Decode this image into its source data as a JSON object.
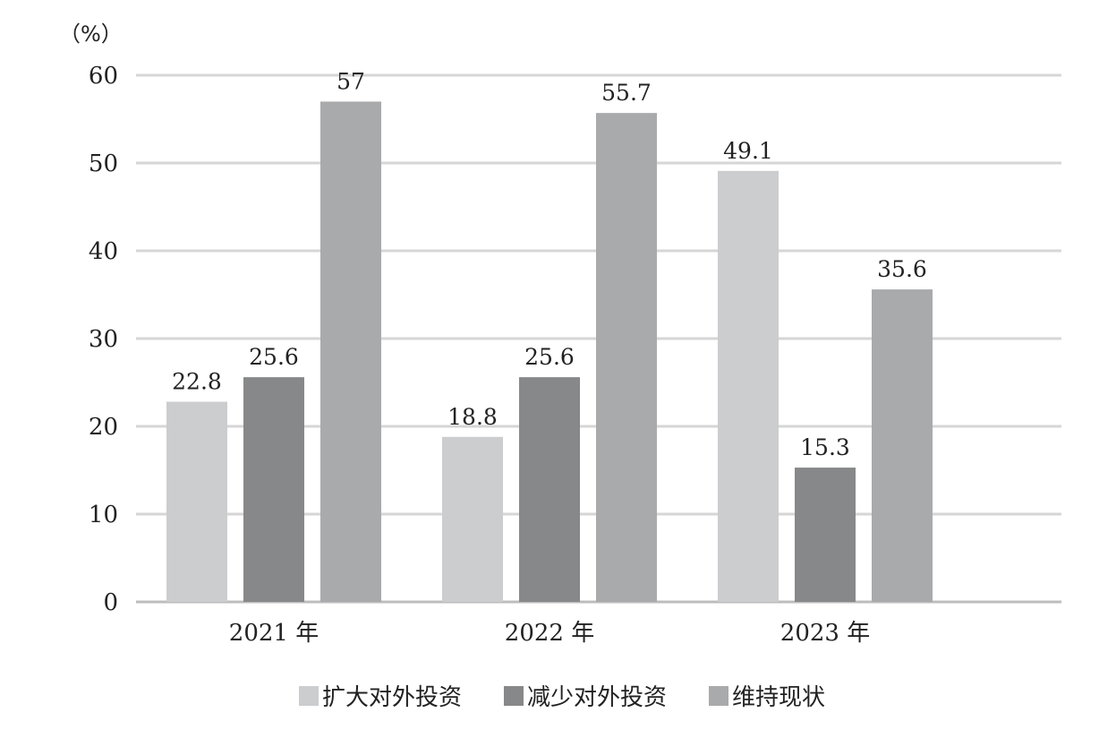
{
  "chart_data": {
    "type": "bar",
    "unit_label": "（%）",
    "categories": [
      "2021 年",
      "2022 年",
      "2023 年"
    ],
    "series": [
      {
        "name": "扩大对外投资",
        "color": "#cbcdcf",
        "values": [
          22.8,
          18.8,
          49.1
        ]
      },
      {
        "name": "减少对外投资",
        "color": "#87888a",
        "values": [
          25.6,
          25.6,
          15.3
        ]
      },
      {
        "name": "维持现状",
        "color": "#a9aaac",
        "values": [
          57,
          55.7,
          35.6
        ]
      }
    ],
    "data_labels": [
      [
        "22.8",
        "18.8",
        "49.1"
      ],
      [
        "25.6",
        "25.6",
        "15.3"
      ],
      [
        "57",
        "55.7",
        "35.6"
      ]
    ],
    "ylim": [
      0,
      60
    ],
    "yticks": [
      0,
      10,
      20,
      30,
      40,
      50,
      60
    ],
    "grid": true,
    "legend_position": "bottom"
  }
}
